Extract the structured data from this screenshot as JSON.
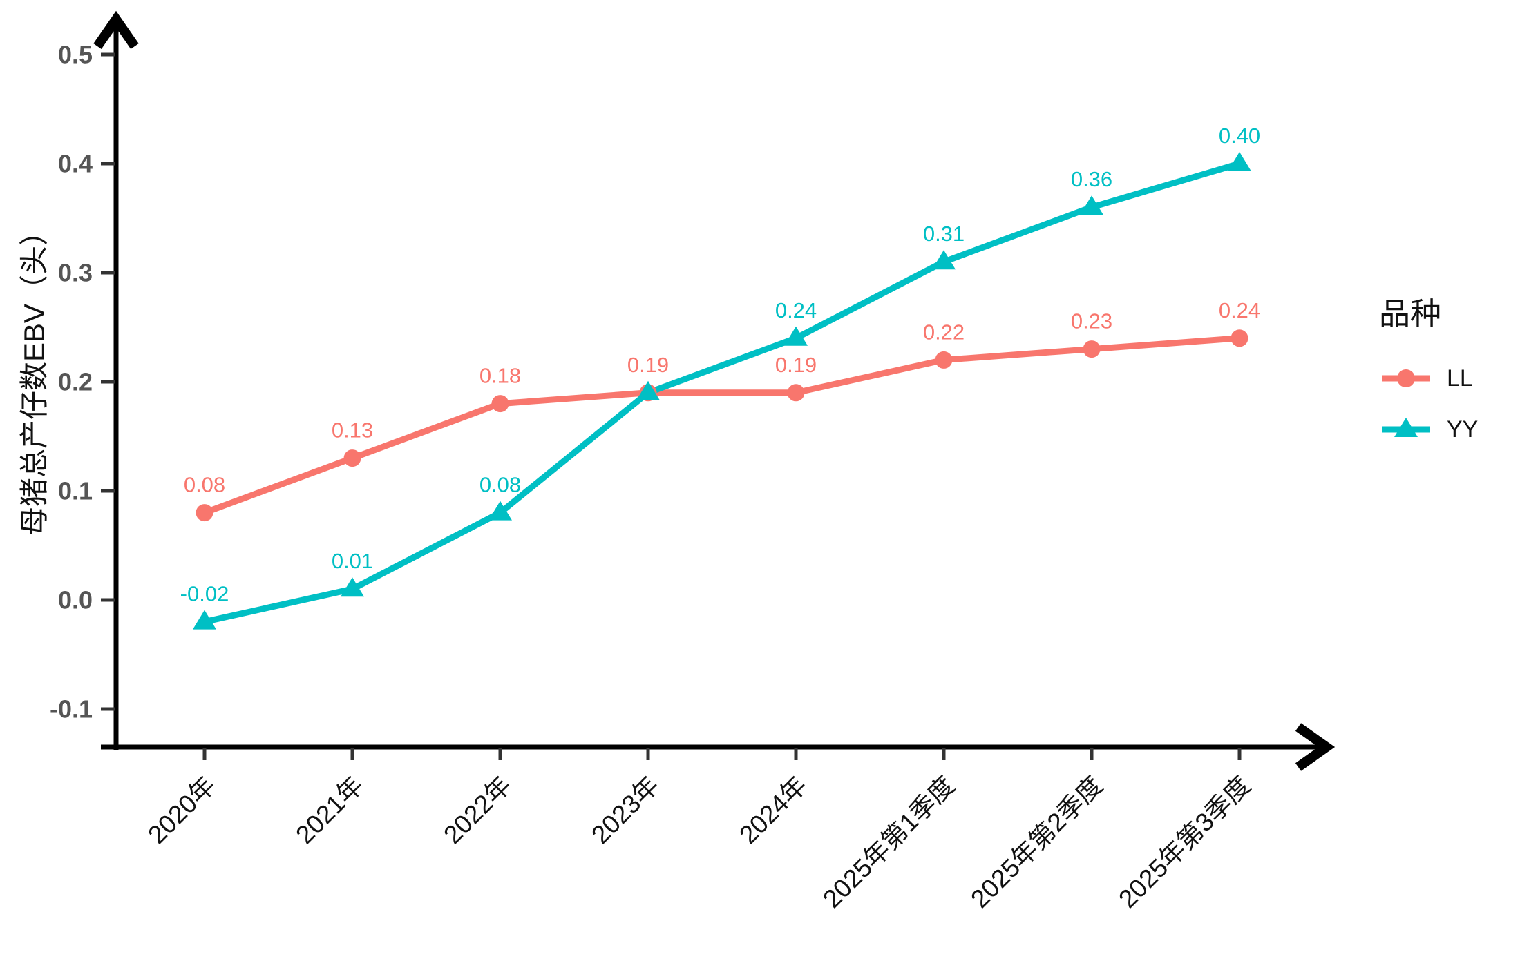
{
  "figure": {
    "background": "#ffffff",
    "axis_color": "#000000",
    "tick_color": "#333333",
    "y_tick_label_color": "#555555",
    "x_tick_label_color": "#111111"
  },
  "y_axis": {
    "title": "母猪总产仔数EBV（头）",
    "tick_labels": [
      "0.5",
      "0.4",
      "0.3",
      "0.2",
      "0.1",
      "0.0",
      "-0.1"
    ],
    "tick_values": [
      0.5,
      0.4,
      0.3,
      0.2,
      0.1,
      0.0,
      -0.1
    ]
  },
  "x_axis": {
    "categories": [
      "2020年",
      "2021年",
      "2022年",
      "2023年",
      "2024年",
      "2025年第1季度",
      "2025年第2季度",
      "2025年第3季度"
    ]
  },
  "legend": {
    "title": "品种",
    "items": [
      {
        "label": "LL",
        "color": "#F8766D",
        "marker": "circle"
      },
      {
        "label": "YY",
        "color": "#00BFC4",
        "marker": "triangle"
      }
    ]
  },
  "chart_data": {
    "type": "line",
    "title": "",
    "xlabel": "",
    "ylabel": "母猪总产仔数EBV（头）",
    "ylim": [
      -0.1,
      0.5
    ],
    "grid": false,
    "legend_position": "right",
    "legend_title": "品种",
    "categories": [
      "2020年",
      "2021年",
      "2022年",
      "2023年",
      "2024年",
      "2025年第1季度",
      "2025年第2季度",
      "2025年第3季度"
    ],
    "series": [
      {
        "name": "LL",
        "color": "#F8766D",
        "marker": "circle",
        "values": [
          0.08,
          0.13,
          0.18,
          0.19,
          0.19,
          0.22,
          0.23,
          0.24
        ],
        "point_labels": [
          "0.08",
          "0.13",
          "0.18",
          "0.19",
          "0.19",
          "0.22",
          "0.23",
          "0.24"
        ]
      },
      {
        "name": "YY",
        "color": "#00BFC4",
        "marker": "triangle",
        "values": [
          -0.02,
          0.01,
          0.08,
          0.19,
          0.24,
          0.31,
          0.36,
          0.4
        ],
        "point_labels": [
          "-0.02",
          "0.01",
          "0.08",
          null,
          "0.24",
          "0.31",
          "0.36",
          "0.40"
        ]
      }
    ]
  }
}
